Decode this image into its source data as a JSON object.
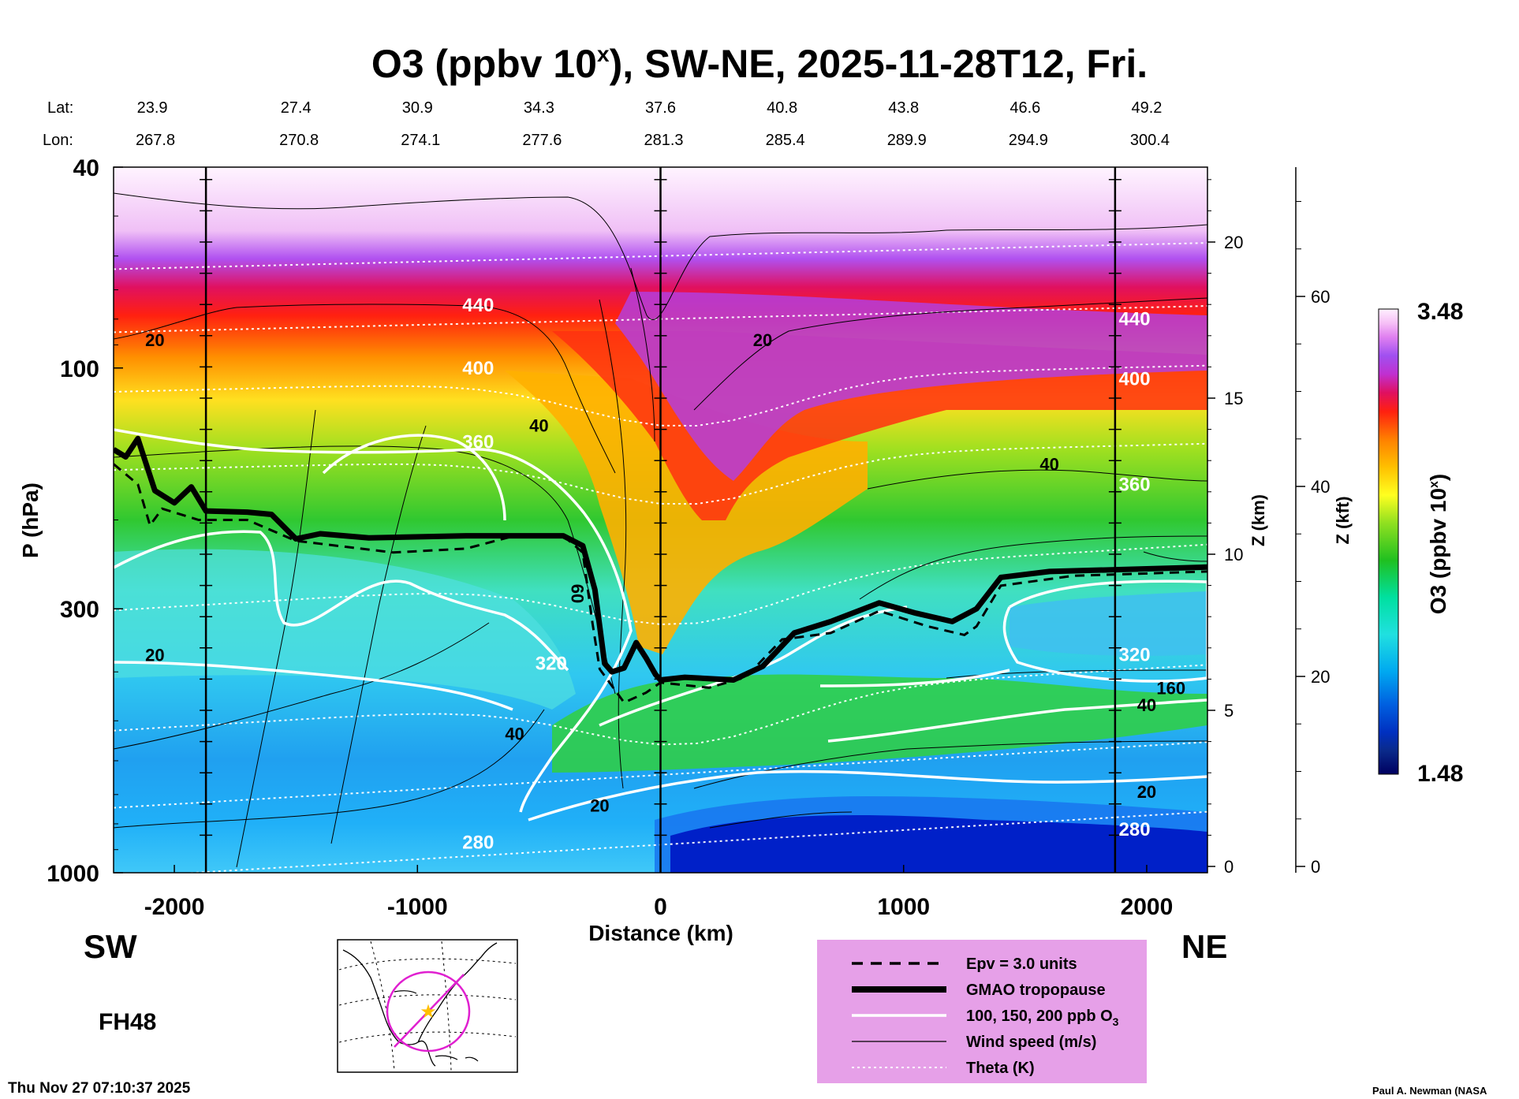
{
  "chart_data": {
    "type": "cross-section",
    "title": {
      "prefix": "O3 (ppbv 10",
      "sup": "x",
      "suffix": "), SW-NE, 2025-11-28T12, Fri."
    },
    "xlabel": "Distance (km)",
    "ylabel": "P (hPa)",
    "y2label": "Z (km)",
    "y3label": "Z (kft)",
    "colorbar_label": {
      "prefix": "O3 (ppbv 10",
      "sup": "x",
      "suffix": ")"
    },
    "xlim": [
      -2250,
      2250
    ],
    "ylim_hpa": [
      1000,
      40
    ],
    "x_ticks": [
      -2000,
      -1000,
      0,
      1000,
      2000
    ],
    "x_tick_labels": [
      "-2000",
      "-1000",
      "0",
      "1000",
      "2000"
    ],
    "y_ticks_hpa": [
      1000,
      300,
      100,
      40
    ],
    "y_tick_labels": [
      "1000",
      "300",
      "100",
      "40"
    ],
    "z_km_ticks": [
      0,
      5,
      10,
      15,
      20
    ],
    "z_km_labels": [
      "0",
      "5",
      "10",
      "15",
      "20"
    ],
    "z_kft_ticks": [
      0,
      20,
      40,
      60
    ],
    "z_kft_labels": [
      "0",
      "20",
      "40",
      "60"
    ],
    "colorbar": {
      "min": 1.48,
      "max": 3.48,
      "min_label": "1.48",
      "max_label": "3.48"
    },
    "lat_label": "Lat:",
    "lon_label": "Lon:",
    "stations_km": [
      -2000,
      -1500,
      -1000,
      -500,
      0,
      500,
      1000,
      1500,
      2000
    ],
    "lat": [
      "23.9",
      "27.4",
      "30.9",
      "34.3",
      "37.6",
      "40.8",
      "43.8",
      "46.6",
      "49.2"
    ],
    "lon": [
      "267.8",
      "270.8",
      "274.1",
      "277.6",
      "281.3",
      "285.4",
      "289.9",
      "294.9",
      "300.4"
    ],
    "vertical_lines_km": [
      -1870,
      0,
      1870
    ],
    "tropopause_km_hpa": [
      [
        -2250,
        145
      ],
      [
        -2200,
        150
      ],
      [
        -2150,
        138
      ],
      [
        -2080,
        175
      ],
      [
        -2000,
        185
      ],
      [
        -1930,
        172
      ],
      [
        -1870,
        192
      ],
      [
        -1700,
        193
      ],
      [
        -1600,
        195
      ],
      [
        -1500,
        218
      ],
      [
        -1400,
        213
      ],
      [
        -1200,
        217
      ],
      [
        -800,
        215
      ],
      [
        -400,
        215
      ],
      [
        -320,
        225
      ],
      [
        -270,
        275
      ],
      [
        -230,
        385
      ],
      [
        -200,
        400
      ],
      [
        -150,
        393
      ],
      [
        -100,
        350
      ],
      [
        -60,
        375
      ],
      [
        -20,
        405
      ],
      [
        0,
        415
      ],
      [
        100,
        410
      ],
      [
        300,
        415
      ],
      [
        420,
        390
      ],
      [
        550,
        335
      ],
      [
        700,
        318
      ],
      [
        900,
        292
      ],
      [
        1050,
        306
      ],
      [
        1200,
        318
      ],
      [
        1300,
        300
      ],
      [
        1400,
        260
      ],
      [
        1600,
        253
      ],
      [
        2000,
        250
      ],
      [
        2250,
        248
      ]
    ],
    "epv_km_hpa": [
      [
        -2250,
        155
      ],
      [
        -2150,
        170
      ],
      [
        -2100,
        205
      ],
      [
        -2050,
        190
      ],
      [
        -1900,
        200
      ],
      [
        -1700,
        200
      ],
      [
        -1500,
        220
      ],
      [
        -1100,
        232
      ],
      [
        -800,
        228
      ],
      [
        -600,
        215
      ],
      [
        -400,
        215
      ],
      [
        -320,
        232
      ],
      [
        -280,
        320
      ],
      [
        -250,
        395
      ],
      [
        -150,
        460
      ],
      [
        -60,
        440
      ],
      [
        0,
        420
      ],
      [
        200,
        430
      ],
      [
        350,
        410
      ],
      [
        500,
        345
      ],
      [
        700,
        335
      ],
      [
        900,
        303
      ],
      [
        1100,
        325
      ],
      [
        1250,
        338
      ],
      [
        1300,
        325
      ],
      [
        1400,
        270
      ],
      [
        1700,
        258
      ],
      [
        2250,
        253
      ]
    ],
    "theta_labels": [
      {
        "x": -750,
        "p": 75,
        "text": "440"
      },
      {
        "x": -750,
        "p": 100,
        "text": "400"
      },
      {
        "x": -750,
        "p": 140,
        "text": "360"
      },
      {
        "x": -450,
        "p": 385,
        "text": "320"
      },
      {
        "x": -750,
        "p": 870,
        "text": "280"
      },
      {
        "x": 1950,
        "p": 80,
        "text": "440"
      },
      {
        "x": 1950,
        "p": 105,
        "text": "400"
      },
      {
        "x": 1950,
        "p": 170,
        "text": "360"
      },
      {
        "x": 1950,
        "p": 370,
        "text": "320"
      },
      {
        "x": 1950,
        "p": 820,
        "text": "280"
      }
    ],
    "wind_labels": [
      {
        "x": -2080,
        "p": 88,
        "text": "20"
      },
      {
        "x": -500,
        "p": 130,
        "text": "40"
      },
      {
        "x": 420,
        "p": 88,
        "text": "20"
      },
      {
        "x": 1600,
        "p": 155,
        "text": "40"
      },
      {
        "x": -340,
        "p": 280,
        "text": "60"
      },
      {
        "x": -2080,
        "p": 370,
        "text": "20"
      },
      {
        "x": -600,
        "p": 530,
        "text": "40"
      },
      {
        "x": -250,
        "p": 735,
        "text": "20"
      },
      {
        "x": 2000,
        "p": 690,
        "text": "20"
      },
      {
        "x": 2000,
        "p": 465,
        "text": "40"
      },
      {
        "x": 2100,
        "p": 430,
        "text": "160"
      }
    ],
    "legend": [
      {
        "style": "dashed",
        "label": "Epv = 3.0 units"
      },
      {
        "style": "thick",
        "label": "GMAO tropopause"
      },
      {
        "style": "white",
        "label_prefix": "100, 150, 200 ppb O",
        "label_sub": "3"
      },
      {
        "style": "thin",
        "label": "Wind speed (m/s)"
      },
      {
        "style": "dotted",
        "label": "Theta (K)"
      }
    ]
  },
  "labels": {
    "sw": "SW",
    "ne": "NE",
    "fh": "FH48",
    "timestamp": "Thu Nov 27 07:10:37 2025",
    "credit": "Paul A. Newman (NASA"
  },
  "colors": {
    "tropopause": "#000000",
    "theta": "#ffffff",
    "legend_bg": "#e6a0e8",
    "map_circle": "#e020d0",
    "map_star": "#ffc000"
  }
}
